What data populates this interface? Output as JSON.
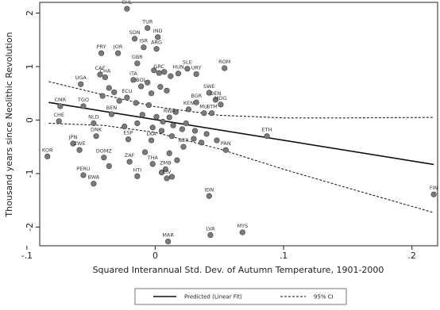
{
  "chart_data": {
    "type": "scatter",
    "xlabel": "Squared Interannual Std. Dev. of Autumn Temperature, 1901-2000",
    "ylabel": "Thousand years since Neolithic Revolution",
    "xlim": [
      -0.09,
      0.22
    ],
    "ylim": [
      -2.35,
      2.2
    ],
    "xticks": [
      -0.1,
      0,
      0.1,
      0.2
    ],
    "xtick_labels": [
      "-.1",
      "0",
      ".1",
      ".2"
    ],
    "yticks": [
      -2,
      -1,
      0,
      1,
      2
    ],
    "ytick_labels": [
      "-2",
      "-1",
      "0",
      "1",
      "2"
    ],
    "grid": false,
    "legend": {
      "placement": "bottom",
      "entries": [
        {
          "label": "Predicted (Linear Fit)",
          "style": "solid"
        },
        {
          "label": "95% CI",
          "style": "dashed"
        }
      ]
    },
    "fit_line": {
      "x": [
        -0.083,
        0.217
      ],
      "y": [
        0.33,
        -0.83
      ]
    },
    "ci_upper": {
      "x": [
        -0.083,
        -0.04,
        0,
        0.05,
        0.1,
        0.15,
        0.217
      ],
      "y": [
        0.72,
        0.47,
        0.25,
        0.09,
        0.04,
        0.04,
        0.05
      ]
    },
    "ci_lower": {
      "x": [
        -0.083,
        -0.04,
        0,
        0.05,
        0.1,
        0.15,
        0.217
      ],
      "y": [
        -0.06,
        -0.1,
        -0.23,
        -0.54,
        -0.92,
        -1.27,
        -1.73
      ]
    },
    "points": [
      {
        "label": "CHL",
        "x": -0.022,
        "y": 2.08
      },
      {
        "label": "TUR",
        "x": -0.006,
        "y": 1.72
      },
      {
        "label": "IND",
        "x": 0.002,
        "y": 1.55
      },
      {
        "label": "SDN",
        "x": -0.016,
        "y": 1.52
      },
      {
        "label": "ISR",
        "x": -0.009,
        "y": 1.36
      },
      {
        "label": "ARG",
        "x": 0.001,
        "y": 1.33
      },
      {
        "label": "PRY",
        "x": -0.042,
        "y": 1.25
      },
      {
        "label": "JOR",
        "x": -0.029,
        "y": 1.25
      },
      {
        "label": "GBR",
        "x": -0.014,
        "y": 1.06
      },
      {
        "label": "SLE",
        "x": 0.025,
        "y": 0.96
      },
      {
        "label": "ROM",
        "x": 0.054,
        "y": 0.97
      },
      {
        "label": "GRC",
        "x": 0.003,
        "y": 0.88
      },
      {
        "label": "HUN",
        "x": 0.018,
        "y": 0.87
      },
      {
        "label": "URY",
        "x": 0.032,
        "y": 0.86
      },
      {
        "label": "ITA",
        "x": -0.017,
        "y": 0.75
      },
      {
        "label": "UGA",
        "x": -0.058,
        "y": 0.67
      },
      {
        "label": "BOL",
        "x": -0.011,
        "y": 0.63
      },
      {
        "label": "CAF",
        "x": -0.043,
        "y": 0.85
      },
      {
        "label": "CHA",
        "x": -0.039,
        "y": 0.8
      },
      {
        "label": "SWE",
        "x": 0.042,
        "y": 0.51
      },
      {
        "label": "ECU",
        "x": -0.022,
        "y": 0.42
      },
      {
        "label": "BGR",
        "x": 0.032,
        "y": 0.33
      },
      {
        "label": "DEN",
        "x": 0.047,
        "y": 0.38
      },
      {
        "label": "MDG",
        "x": 0.051,
        "y": 0.29
      },
      {
        "label": "CMR",
        "x": -0.074,
        "y": 0.26
      },
      {
        "label": "TGO",
        "x": -0.056,
        "y": 0.26
      },
      {
        "label": "KEN",
        "x": 0.026,
        "y": 0.2
      },
      {
        "label": "BEN",
        "x": -0.034,
        "y": 0.11
      },
      {
        "label": "MLI",
        "x": 0.038,
        "y": 0.13
      },
      {
        "label": "GTM",
        "x": 0.044,
        "y": 0.13
      },
      {
        "label": "RWA",
        "x": 0.011,
        "y": 0.05
      },
      {
        "label": "CHE",
        "x": -0.075,
        "y": -0.02
      },
      {
        "label": "NLD",
        "x": -0.048,
        "y": -0.06
      },
      {
        "label": "ETH",
        "x": 0.087,
        "y": -0.3
      },
      {
        "label": "JPN",
        "x": -0.064,
        "y": -0.44
      },
      {
        "label": "ZWE",
        "x": -0.059,
        "y": -0.56
      },
      {
        "label": "DNK",
        "x": -0.046,
        "y": -0.3
      },
      {
        "label": "ESP",
        "x": -0.021,
        "y": -0.36
      },
      {
        "label": "LKA",
        "x": -0.003,
        "y": -0.38
      },
      {
        "label": "NER",
        "x": 0.022,
        "y": -0.5
      },
      {
        "label": "PAN",
        "x": 0.055,
        "y": -0.56
      },
      {
        "label": "KOR",
        "x": -0.084,
        "y": -0.68
      },
      {
        "label": "DOMZ",
        "x": -0.04,
        "y": -0.7
      },
      {
        "label": "ZAF",
        "x": -0.02,
        "y": -0.78
      },
      {
        "label": "THA",
        "x": -0.002,
        "y": -0.82
      },
      {
        "label": "ZMB",
        "x": 0.008,
        "y": -0.92
      },
      {
        "label": "PERU",
        "x": -0.056,
        "y": -1.03
      },
      {
        "label": "HTI",
        "x": -0.014,
        "y": -1.05
      },
      {
        "label": "BWA",
        "x": -0.048,
        "y": -1.19
      },
      {
        "label": "CIV",
        "x": 0.009,
        "y": -1.09
      },
      {
        "label": "IDN",
        "x": 0.042,
        "y": -1.42
      },
      {
        "label": "FIN",
        "x": 0.217,
        "y": -1.39
      },
      {
        "label": "MYS",
        "x": 0.068,
        "y": -2.1
      },
      {
        "label": "LVA",
        "x": 0.043,
        "y": -2.15
      },
      {
        "label": "MAR",
        "x": 0.01,
        "y": -2.27
      }
    ],
    "unlabeled_points": [
      {
        "x": -0.001,
        "y": 0.93
      },
      {
        "x": 0.007,
        "y": 0.9
      },
      {
        "x": 0.012,
        "y": 0.82
      },
      {
        "x": -0.006,
        "y": 0.7
      },
      {
        "x": 0.004,
        "y": 0.62
      },
      {
        "x": 0.009,
        "y": 0.55
      },
      {
        "x": -0.003,
        "y": 0.5
      },
      {
        "x": -0.036,
        "y": 0.6
      },
      {
        "x": -0.032,
        "y": 0.52
      },
      {
        "x": -0.041,
        "y": 0.45
      },
      {
        "x": -0.028,
        "y": 0.36
      },
      {
        "x": -0.015,
        "y": 0.32
      },
      {
        "x": -0.005,
        "y": 0.28
      },
      {
        "x": 0.016,
        "y": 0.15
      },
      {
        "x": -0.01,
        "y": 0.1
      },
      {
        "x": 0.001,
        "y": 0.06
      },
      {
        "x": 0.006,
        "y": -0.03
      },
      {
        "x": -0.014,
        "y": -0.06
      },
      {
        "x": 0.014,
        "y": -0.1
      },
      {
        "x": 0.021,
        "y": -0.17
      },
      {
        "x": 0.031,
        "y": -0.2
      },
      {
        "x": 0.04,
        "y": -0.26
      },
      {
        "x": 0.03,
        "y": -0.35
      },
      {
        "x": 0.013,
        "y": -0.3
      },
      {
        "x": 0.005,
        "y": -0.2
      },
      {
        "x": -0.002,
        "y": -0.14
      },
      {
        "x": -0.024,
        "y": -0.12
      },
      {
        "x": 0.024,
        "y": -0.06
      },
      {
        "x": 0.036,
        "y": -0.42
      },
      {
        "x": 0.048,
        "y": -0.38
      },
      {
        "x": 0.011,
        "y": -0.62
      },
      {
        "x": 0.017,
        "y": -0.75
      },
      {
        "x": 0.005,
        "y": -0.98
      },
      {
        "x": 0.013,
        "y": -1.06
      },
      {
        "x": -0.008,
        "y": -0.6
      },
      {
        "x": -0.036,
        "y": -0.86
      }
    ]
  }
}
